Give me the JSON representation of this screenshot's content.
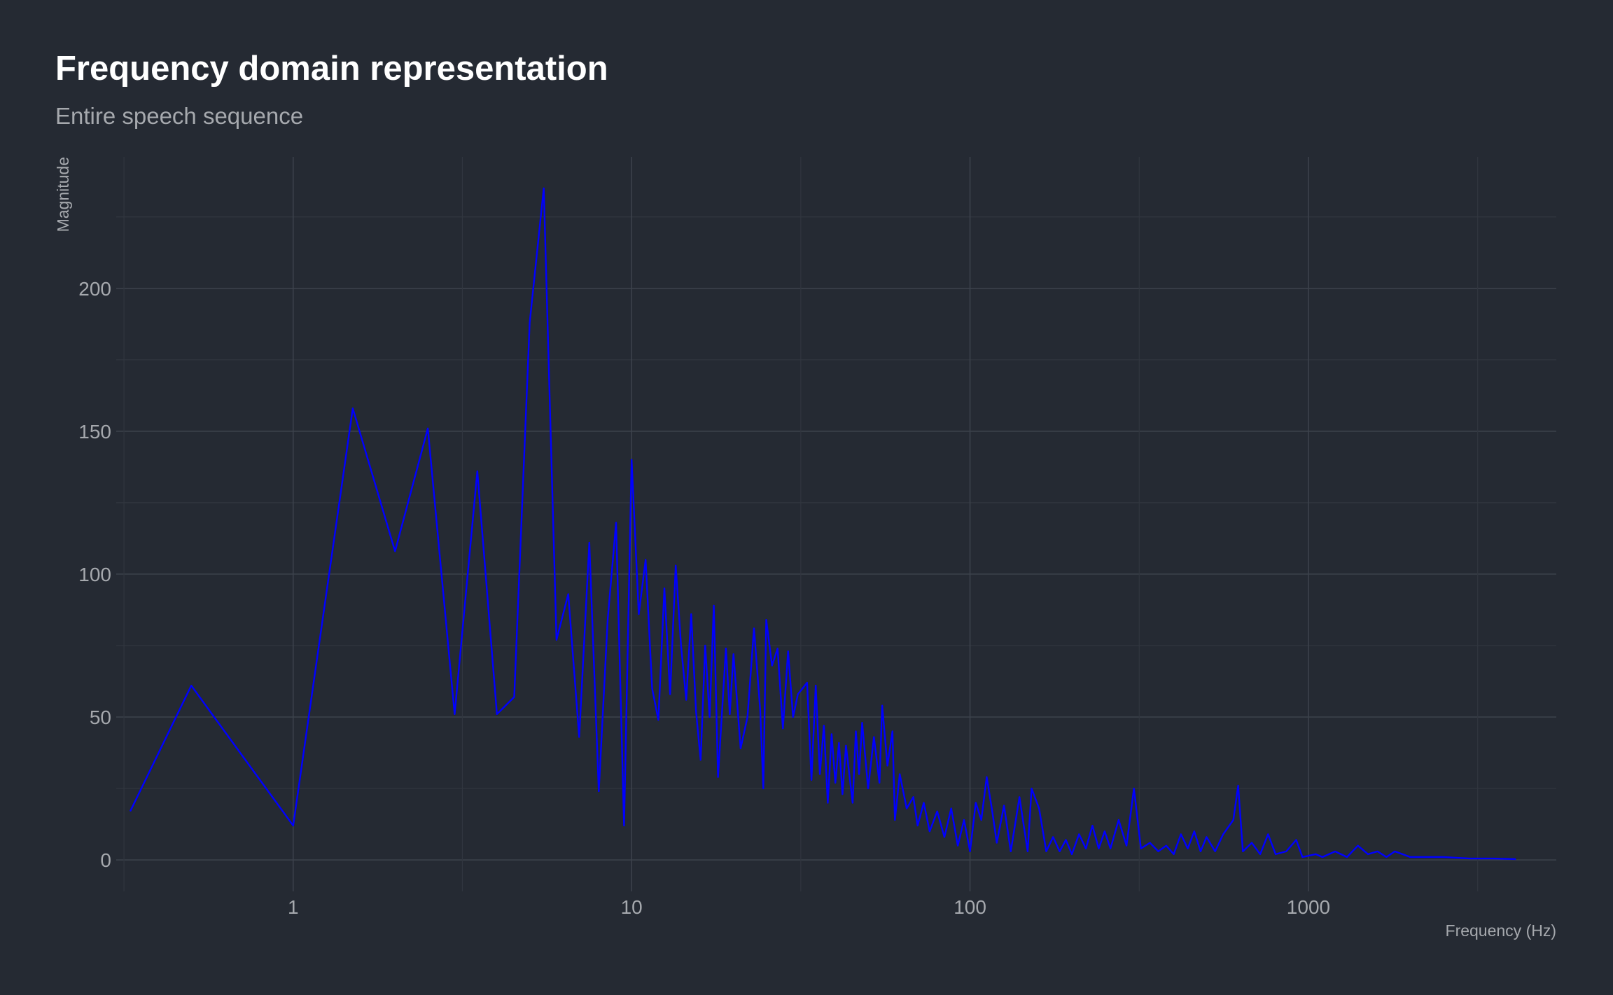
{
  "colors": {
    "background": "#252a33",
    "line": "#0000ff",
    "text": "#a6a9ae",
    "title": "#ffffff"
  },
  "chart_data": {
    "type": "line",
    "title": "Frequency domain representation",
    "subtitle": "Entire speech sequence",
    "xlabel": "Frequency (Hz)",
    "ylabel": "Magnitude",
    "x_scale": "log",
    "xlim": [
      0.3,
      5400
    ],
    "ylim": [
      -11,
      246
    ],
    "x_ticks": [
      1,
      10,
      100,
      1000
    ],
    "x_tick_labels": [
      "1",
      "10",
      "100",
      "1000"
    ],
    "y_ticks": [
      0,
      50,
      100,
      150,
      200
    ],
    "y_tick_labels": [
      "0",
      "50",
      "100",
      "150",
      "200"
    ],
    "grid": true,
    "series": [
      {
        "color": "#0000ff",
        "points": [
          [
            0.33,
            17
          ],
          [
            0.5,
            61
          ],
          [
            1.0,
            12
          ],
          [
            1.5,
            158
          ],
          [
            2.0,
            108
          ],
          [
            2.5,
            151
          ],
          [
            3.0,
            51
          ],
          [
            3.5,
            136
          ],
          [
            4.0,
            51
          ],
          [
            4.5,
            57
          ],
          [
            5.0,
            188
          ],
          [
            5.5,
            235
          ],
          [
            6.0,
            77
          ],
          [
            6.5,
            93
          ],
          [
            7.0,
            43
          ],
          [
            7.5,
            111
          ],
          [
            8.0,
            24
          ],
          [
            8.5,
            84
          ],
          [
            9.0,
            118
          ],
          [
            9.5,
            12
          ],
          [
            10.0,
            140
          ],
          [
            10.5,
            86
          ],
          [
            11.0,
            105
          ],
          [
            11.5,
            60
          ],
          [
            12.0,
            49
          ],
          [
            12.5,
            95
          ],
          [
            13.0,
            58
          ],
          [
            13.5,
            103
          ],
          [
            14.0,
            75
          ],
          [
            14.5,
            56
          ],
          [
            15.0,
            86
          ],
          [
            15.5,
            52
          ],
          [
            16.0,
            35
          ],
          [
            16.5,
            75
          ],
          [
            17.0,
            50
          ],
          [
            17.5,
            89
          ],
          [
            18.0,
            29
          ],
          [
            19.0,
            74
          ],
          [
            19.5,
            51
          ],
          [
            20.0,
            72
          ],
          [
            21.0,
            39
          ],
          [
            22.0,
            50
          ],
          [
            23.0,
            81
          ],
          [
            24.0,
            52
          ],
          [
            24.5,
            25
          ],
          [
            25.0,
            84
          ],
          [
            26.0,
            68
          ],
          [
            27.0,
            74
          ],
          [
            28.0,
            46
          ],
          [
            29.0,
            73
          ],
          [
            30.0,
            50
          ],
          [
            31.0,
            58
          ],
          [
            33.0,
            62
          ],
          [
            34.0,
            28
          ],
          [
            35.0,
            61
          ],
          [
            36.0,
            30
          ],
          [
            37.0,
            47
          ],
          [
            38.0,
            20
          ],
          [
            39.0,
            44
          ],
          [
            40.0,
            27
          ],
          [
            41.0,
            41
          ],
          [
            42.0,
            23
          ],
          [
            43.0,
            40
          ],
          [
            45.0,
            20
          ],
          [
            46.0,
            45
          ],
          [
            47.0,
            30
          ],
          [
            48.0,
            48
          ],
          [
            50.0,
            25
          ],
          [
            52.0,
            43
          ],
          [
            54.0,
            27
          ],
          [
            55.0,
            54
          ],
          [
            57.0,
            33
          ],
          [
            59.0,
            45
          ],
          [
            60.0,
            14
          ],
          [
            62.0,
            30
          ],
          [
            65.0,
            18
          ],
          [
            68.0,
            22
          ],
          [
            70.0,
            12
          ],
          [
            73.0,
            20
          ],
          [
            76.0,
            10
          ],
          [
            80.0,
            17
          ],
          [
            84.0,
            8
          ],
          [
            88.0,
            18
          ],
          [
            92.0,
            5
          ],
          [
            96.0,
            14
          ],
          [
            100.0,
            3
          ],
          [
            104.0,
            20
          ],
          [
            108.0,
            14
          ],
          [
            112.0,
            29
          ],
          [
            116.0,
            18
          ],
          [
            120.0,
            6
          ],
          [
            126.0,
            19
          ],
          [
            132.0,
            3
          ],
          [
            140.0,
            22
          ],
          [
            148.0,
            3
          ],
          [
            152.0,
            25
          ],
          [
            160.0,
            18
          ],
          [
            168.0,
            3
          ],
          [
            176.0,
            8
          ],
          [
            184.0,
            3
          ],
          [
            192.0,
            7
          ],
          [
            200.0,
            2
          ],
          [
            210.0,
            9
          ],
          [
            220.0,
            4
          ],
          [
            230.0,
            12
          ],
          [
            240.0,
            4
          ],
          [
            250.0,
            10
          ],
          [
            260.0,
            4
          ],
          [
            275.0,
            14
          ],
          [
            290.0,
            5
          ],
          [
            305.0,
            25
          ],
          [
            320.0,
            4
          ],
          [
            340.0,
            6
          ],
          [
            360.0,
            3
          ],
          [
            380.0,
            5
          ],
          [
            400.0,
            2
          ],
          [
            420.0,
            9
          ],
          [
            440.0,
            4
          ],
          [
            460.0,
            10
          ],
          [
            480.0,
            3
          ],
          [
            500.0,
            8
          ],
          [
            530.0,
            3
          ],
          [
            560.0,
            9
          ],
          [
            600.0,
            14
          ],
          [
            620.0,
            26
          ],
          [
            640.0,
            3
          ],
          [
            680.0,
            6
          ],
          [
            720.0,
            2
          ],
          [
            760.0,
            9
          ],
          [
            800.0,
            2
          ],
          [
            860.0,
            3
          ],
          [
            920.0,
            7
          ],
          [
            960.0,
            1
          ],
          [
            1050.0,
            2
          ],
          [
            1100.0,
            1
          ],
          [
            1200.0,
            3
          ],
          [
            1300.0,
            1
          ],
          [
            1400.0,
            5
          ],
          [
            1500.0,
            2
          ],
          [
            1600.0,
            3
          ],
          [
            1700.0,
            1
          ],
          [
            1800.0,
            3
          ],
          [
            2000.0,
            1
          ],
          [
            2200.0,
            1
          ],
          [
            2500.0,
            1
          ],
          [
            3000.0,
            0.5
          ],
          [
            3500.0,
            0.5
          ],
          [
            4100.0,
            0.3
          ]
        ]
      }
    ]
  }
}
